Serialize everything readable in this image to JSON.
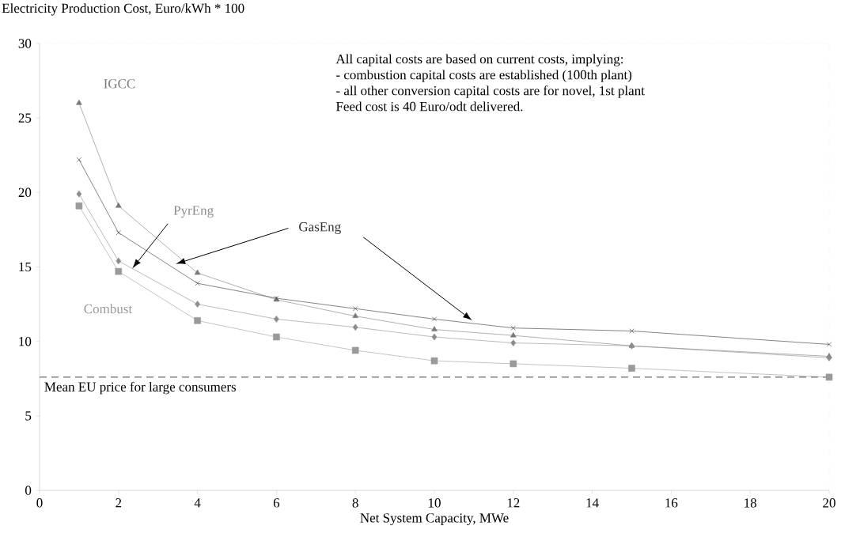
{
  "chart_data": {
    "type": "line",
    "ylabel": "Electricity Production Cost, Euro/kWh * 100",
    "xlabel": "Net System Capacity, MWe",
    "x": [
      1,
      2,
      4,
      6,
      8,
      10,
      12,
      15,
      20
    ],
    "series": [
      {
        "name": "IGCC",
        "color": "#7a7a7a",
        "marker": "triangle",
        "values": [
          26,
          19.1,
          14.6,
          12.8,
          11.7,
          10.8,
          10.4,
          9.7,
          9.0
        ]
      },
      {
        "name": "GasEng",
        "color": "#333333",
        "marker": "cross",
        "values": [
          22.2,
          17.3,
          13.9,
          12.9,
          12.2,
          11.5,
          10.9,
          10.7,
          9.8
        ]
      },
      {
        "name": "PyrEng",
        "color": "#8c8c8c",
        "marker": "diamond",
        "values": [
          19.9,
          15.4,
          12.5,
          11.5,
          10.95,
          10.3,
          9.9,
          9.7,
          8.9
        ]
      },
      {
        "name": "Combust",
        "color": "#9a9a9a",
        "marker": "square",
        "values": [
          19.1,
          14.7,
          11.4,
          10.3,
          9.4,
          8.7,
          8.5,
          8.2,
          7.6
        ]
      }
    ],
    "xlim": [
      0,
      20
    ],
    "ylim": [
      0,
      30
    ],
    "xticks": [
      0,
      2,
      4,
      6,
      8,
      10,
      12,
      14,
      16,
      18,
      20
    ],
    "yticks": [
      0,
      5,
      10,
      15,
      20,
      25,
      30
    ],
    "ref_lines": [
      {
        "axis": "y",
        "value": 7.6,
        "label": "Mean EU price for large consumers",
        "color": "#808080",
        "line_style": "dashed"
      }
    ],
    "annotations": [
      "All capital costs are based on current costs, implying:",
      "- combustion capital costs are established (100th plant)",
      "- all other conversion capital costs are for novel, 1st plant",
      "Feed cost is 40 Euro/odt delivered."
    ],
    "grid": false,
    "legend": false
  }
}
